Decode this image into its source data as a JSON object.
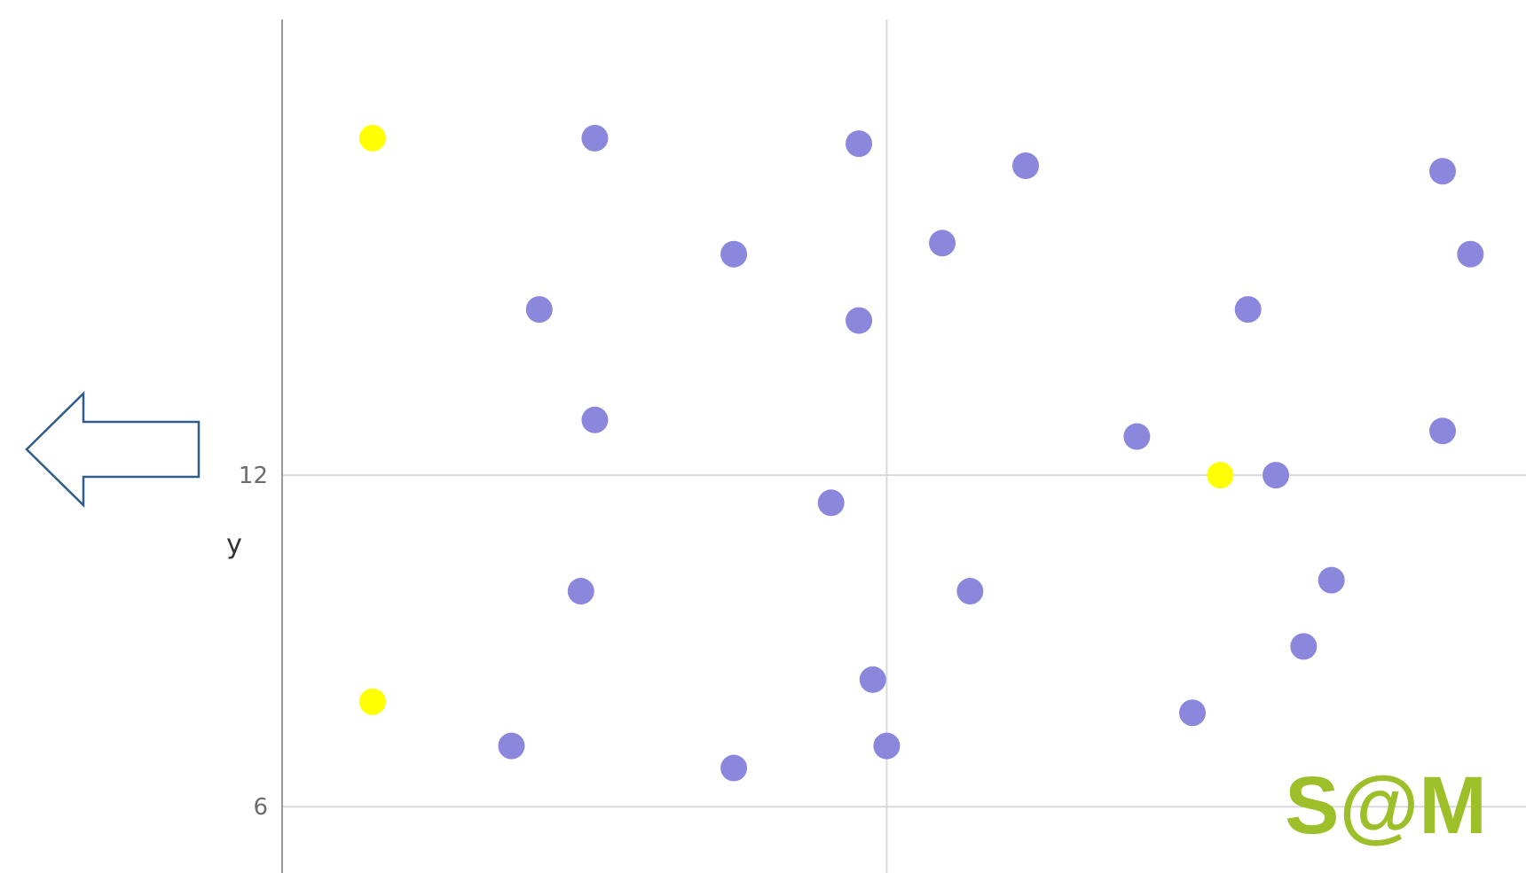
{
  "colors": {
    "point": "#8a87dd",
    "highlight": "#ffff00",
    "gridline": "#d9d9d9",
    "axis": "#999999",
    "arrow_stroke": "#2f5d87",
    "logo": "#9cbf2a"
  },
  "icons": {
    "arrow": "left-arrow-icon",
    "logo": "sam-logo"
  },
  "logo_text": "S@M",
  "chart_data": {
    "type": "scatter",
    "title": "",
    "xlabel": "",
    "ylabel": "y",
    "xlim": [
      -4.35,
      4.6
    ],
    "ylim": [
      4.8,
      20.6
    ],
    "xgrid": [
      0
    ],
    "yticks": [
      6,
      12
    ],
    "grid": true,
    "series": [
      {
        "color_role": "point",
        "points": [
          [
            -2.1,
            18.1
          ],
          [
            -1.1,
            16.0
          ],
          [
            -2.5,
            15.0
          ],
          [
            -2.1,
            13.0
          ],
          [
            -2.2,
            9.9
          ],
          [
            -2.7,
            7.1
          ],
          [
            -1.1,
            6.7
          ],
          [
            -0.1,
            8.3
          ],
          [
            -0.2,
            18.0
          ],
          [
            -0.2,
            14.8
          ],
          [
            -0.4,
            11.5
          ],
          [
            0.4,
            16.2
          ],
          [
            0.6,
            9.9
          ],
          [
            0.0,
            7.1
          ],
          [
            1.0,
            17.6
          ],
          [
            1.8,
            12.7
          ],
          [
            2.2,
            7.7
          ],
          [
            2.6,
            15.0
          ],
          [
            2.8,
            12.0
          ],
          [
            3.0,
            8.9
          ],
          [
            3.2,
            10.1
          ],
          [
            4.0,
            17.5
          ],
          [
            4.2,
            16.0
          ],
          [
            4.0,
            12.8
          ]
        ]
      },
      {
        "color_role": "highlight",
        "points": [
          [
            -3.7,
            18.1
          ],
          [
            -3.7,
            7.9
          ],
          [
            2.4,
            12.0
          ]
        ]
      }
    ]
  }
}
